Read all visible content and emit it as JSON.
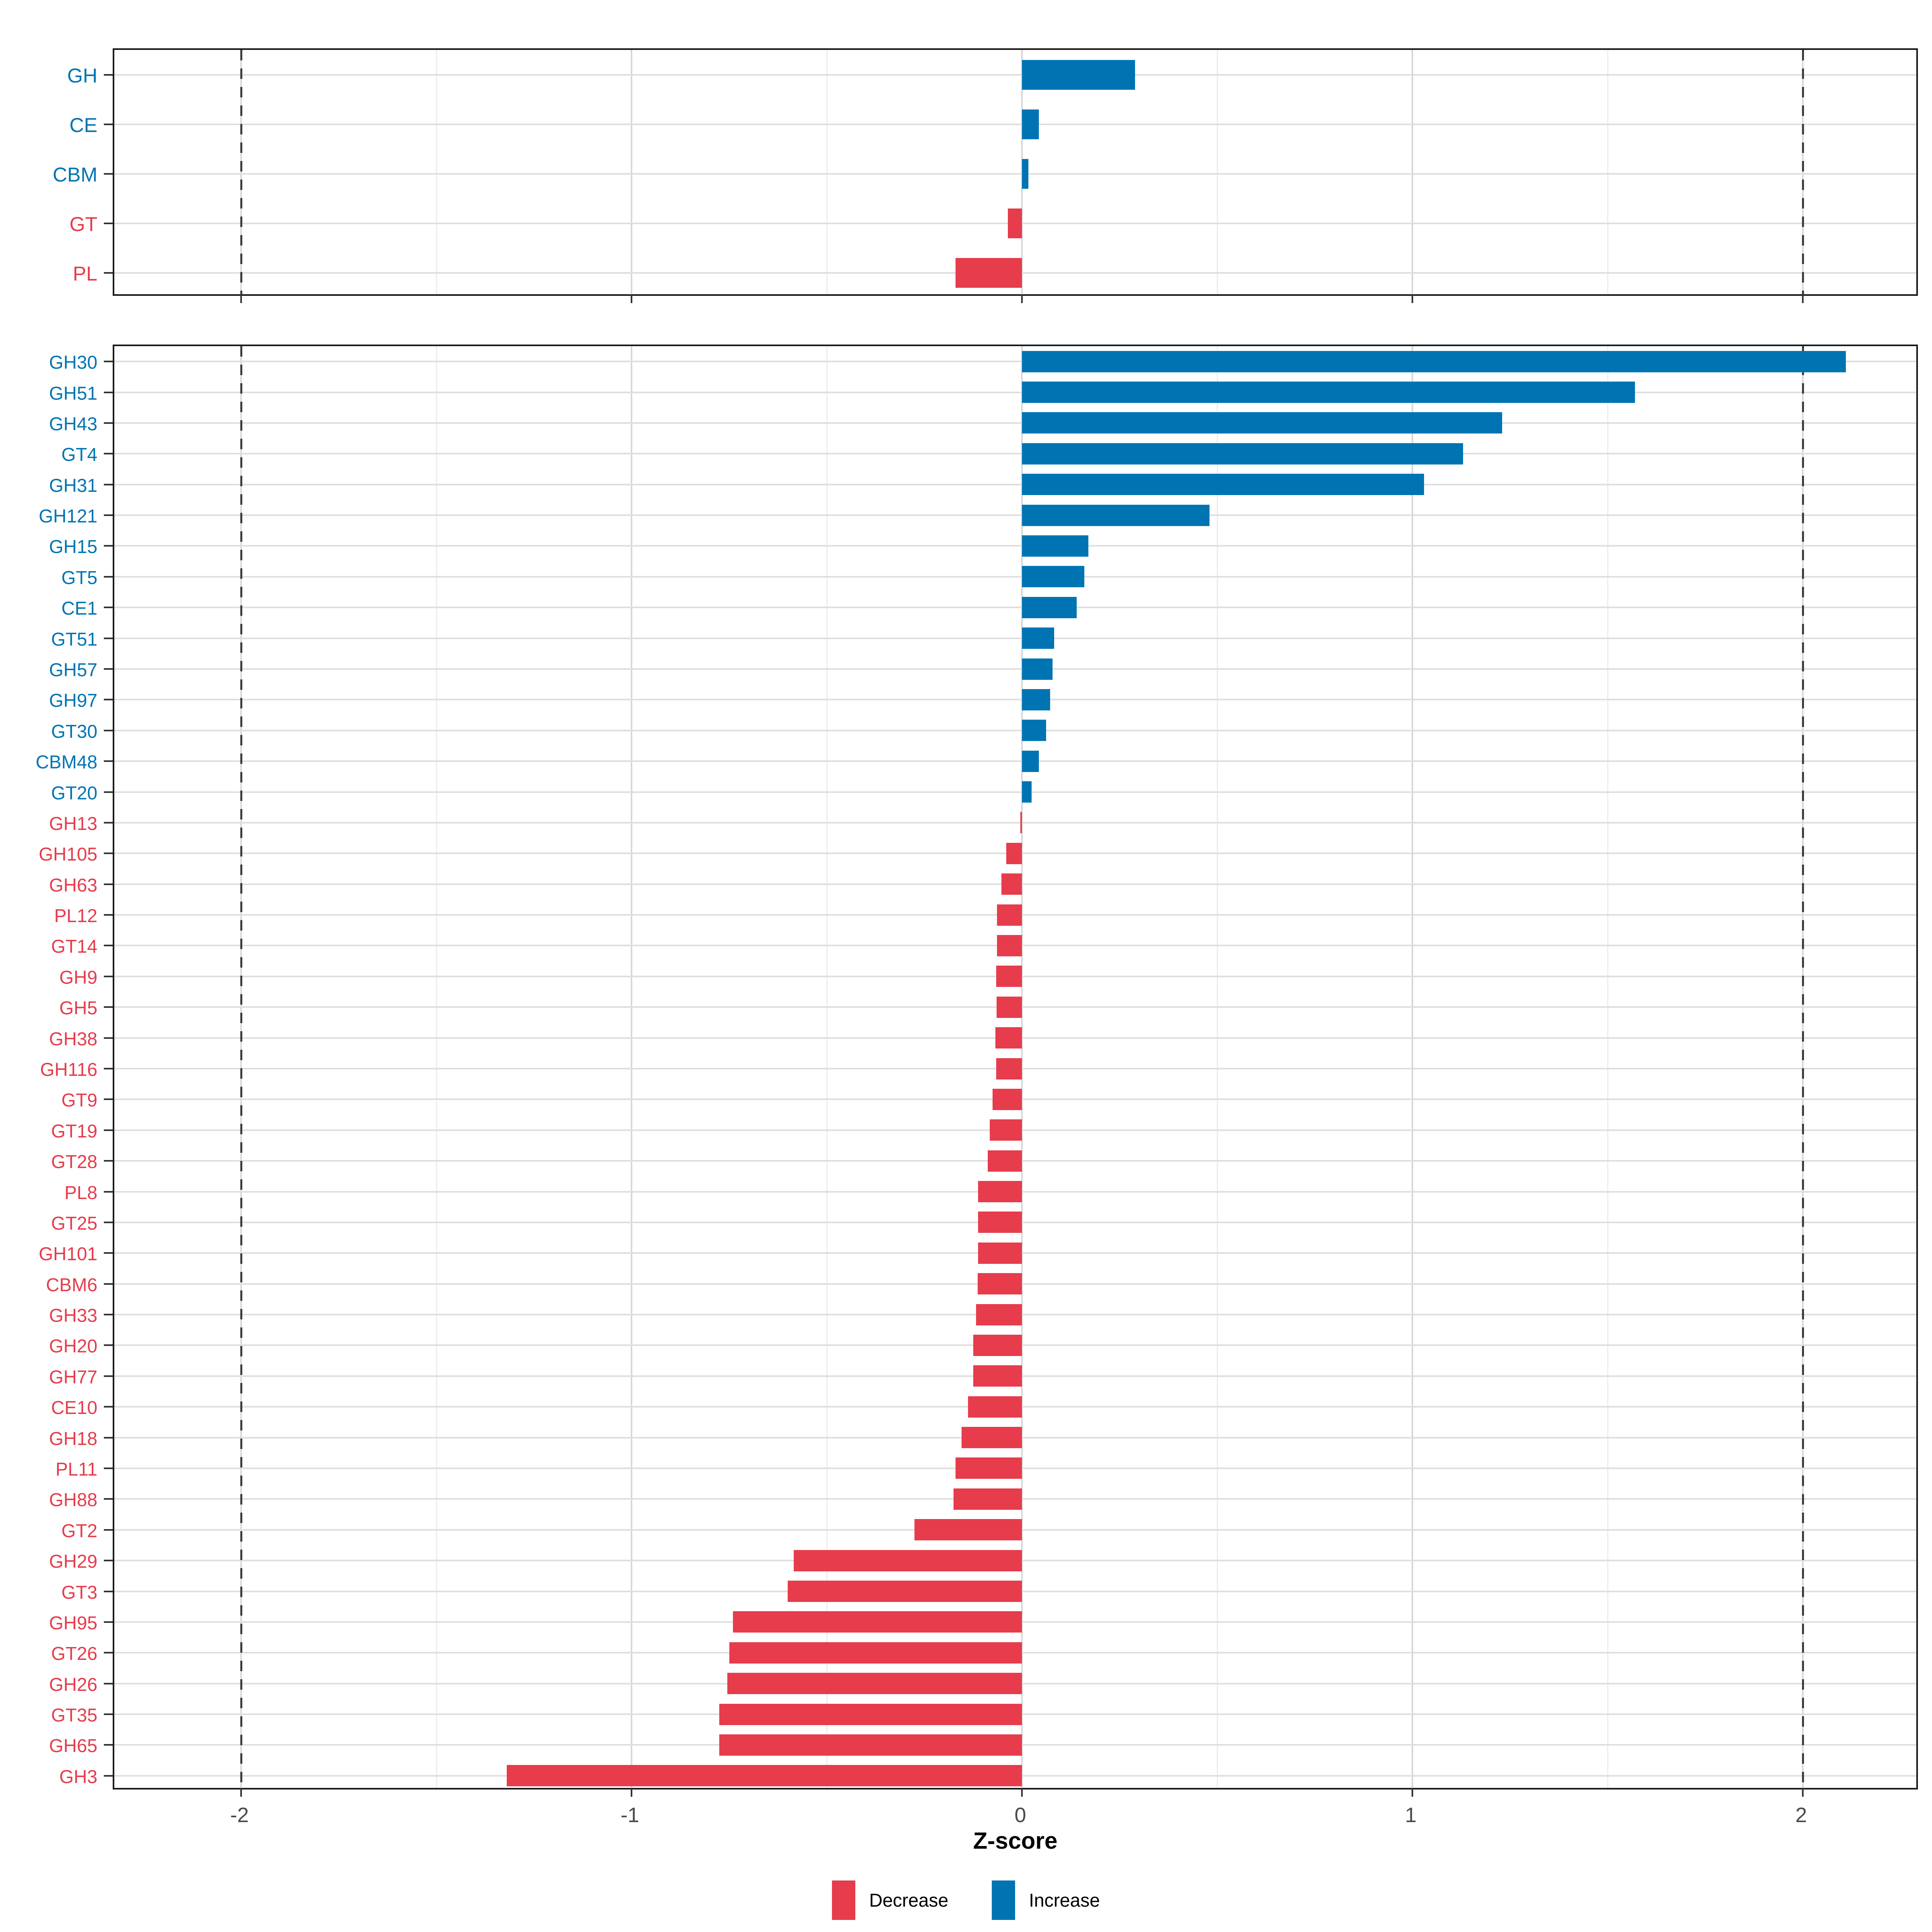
{
  "axis": {
    "title": "Z-score",
    "tick_labels": [
      "-2",
      "-1",
      "0",
      "1",
      "2"
    ],
    "tick_values": [
      -2,
      -1,
      0,
      1,
      2
    ],
    "minor_tick_values": [
      -1.5,
      -0.5,
      0.5,
      1.5
    ],
    "reference_lines": [
      -2,
      2
    ]
  },
  "legend": {
    "items": [
      {
        "label": "Decrease",
        "color": "#E63C4C"
      },
      {
        "label": "Increase",
        "color": "#0074B3"
      }
    ]
  },
  "colors": {
    "increase": "#0074B3",
    "decrease": "#E63C4C",
    "grid_major": "#D8D8D8",
    "grid_minor": "#EDEDED",
    "row_grid": "#DFDFDF",
    "panel_border": "#1A1A1A",
    "dashed_reference": "#3D3D3D",
    "tick_mark": "#333333",
    "tick_text": "#4A4A4A"
  },
  "chart_data": [
    {
      "type": "bar",
      "orientation": "horizontal",
      "panel": "cazyme-families",
      "title": "",
      "xlabel": "Z-score",
      "ylabel": "",
      "xlim": [
        -2.33,
        2.3
      ],
      "grid": true,
      "legend_position": "bottom",
      "categories": [
        "GH",
        "CE",
        "CBM",
        "GT",
        "PL"
      ],
      "values": [
        0.29,
        0.043,
        0.017,
        -0.036,
        -0.17
      ]
    },
    {
      "type": "bar",
      "orientation": "horizontal",
      "panel": "cazyme-subfamilies",
      "title": "",
      "xlabel": "Z-score",
      "ylabel": "",
      "xlim": [
        -2.33,
        2.3
      ],
      "grid": true,
      "legend_position": "bottom",
      "categories": [
        "GH30",
        "GH51",
        "GH43",
        "GT4",
        "GH31",
        "GH121",
        "GH15",
        "GT5",
        "CE1",
        "GT51",
        "GH57",
        "GH97",
        "GT30",
        "CBM48",
        "GT20",
        "GH13",
        "GH105",
        "GH63",
        "PL12",
        "GT14",
        "GH9",
        "GH5",
        "GH38",
        "GH116",
        "GT9",
        "GT19",
        "GT28",
        "PL8",
        "GT25",
        "GH101",
        "CBM6",
        "GH33",
        "GH20",
        "GH77",
        "CE10",
        "GH18",
        "PL11",
        "GH88",
        "GT2",
        "GH29",
        "GT3",
        "GH95",
        "GT26",
        "GH26",
        "GT35",
        "GH65",
        "GH3"
      ],
      "values": [
        2.11,
        1.57,
        1.23,
        1.13,
        1.03,
        0.48,
        0.17,
        0.16,
        0.14,
        0.082,
        0.078,
        0.072,
        0.062,
        0.043,
        0.025,
        -0.004,
        -0.04,
        -0.053,
        -0.064,
        -0.064,
        -0.066,
        -0.065,
        -0.068,
        -0.066,
        -0.075,
        -0.082,
        -0.088,
        -0.112,
        -0.112,
        -0.112,
        -0.113,
        -0.118,
        -0.125,
        -0.125,
        -0.138,
        -0.155,
        -0.17,
        -0.175,
        -0.275,
        -0.585,
        -0.6,
        -0.74,
        -0.75,
        -0.755,
        -0.775,
        -0.775,
        -1.32
      ]
    }
  ]
}
